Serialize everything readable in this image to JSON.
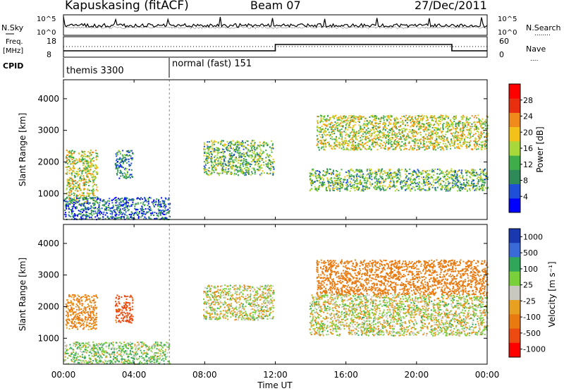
{
  "header": {
    "station": "Kapuskasing (fitACF)",
    "beam": "Beam 07",
    "date": "27/Dec/2011"
  },
  "noise_panel": {
    "left_label": "N.Sky",
    "right_label": "N.Search",
    "right_marker": "........",
    "left_ticks": [
      "10^5",
      "10^0"
    ],
    "right_ticks": [
      "10^5",
      "10^0"
    ]
  },
  "freq_panel": {
    "left_label_1": "Freq.",
    "left_label_2": "[MHz]",
    "right_label": "Nave",
    "right_marker": "....",
    "left_ticks": [
      "18",
      "8"
    ],
    "right_ticks": [
      "60",
      "0"
    ]
  },
  "cpid_panel": {
    "label": "CPID",
    "modes": [
      {
        "name": "themis 3300",
        "start_hour": 0
      },
      {
        "name": "normal (fast) 151",
        "start_hour": 6
      }
    ]
  },
  "time_axis": {
    "label": "Time UT",
    "tick_labels": [
      "00:00",
      "04:00",
      "08:00",
      "12:00",
      "16:00",
      "20:00",
      "00:00"
    ],
    "tick_hours": [
      0,
      4,
      8,
      12,
      16,
      20,
      24
    ]
  },
  "colors": {
    "power_scale": [
      "#0000ff",
      "#1f4fd8",
      "#2f8a5a",
      "#3fae4a",
      "#a8d83a",
      "#f2c21a",
      "#f08a1a",
      "#e83010",
      "#ff0000"
    ],
    "velocity_scale": [
      "#1a38b0",
      "#3a6ad8",
      "#2fa65a",
      "#7ad03a",
      "#c8c8c0",
      "#e8a020",
      "#e87a10",
      "#ec4a10",
      "#ff0000"
    ]
  },
  "chart_data": [
    {
      "type": "heatmap",
      "name": "power",
      "ylabel": "Slant Range [km]",
      "ylim": [
        180,
        4600
      ],
      "y_ticks": [
        1000,
        2000,
        3000,
        4000
      ],
      "xlim": [
        0,
        24
      ],
      "colorbar": {
        "label": "Power [dB]",
        "ticks": [
          "4",
          "8",
          "12",
          "16",
          "20",
          "24",
          "28"
        ],
        "range": [
          0,
          30
        ]
      },
      "regions": [
        {
          "t0": 0.1,
          "t1": 1.9,
          "r0": 700,
          "r1": 2400,
          "level": 16
        },
        {
          "t0": 2.9,
          "t1": 3.9,
          "r0": 1500,
          "r1": 2400,
          "level": 8
        },
        {
          "t0": 0.0,
          "t1": 6.0,
          "r0": 200,
          "r1": 900,
          "level": 6
        },
        {
          "t0": 7.9,
          "t1": 11.9,
          "r0": 1600,
          "r1": 2700,
          "level": 12
        },
        {
          "t0": 13.9,
          "t1": 24.0,
          "r0": 1100,
          "r1": 1800,
          "level": 12
        },
        {
          "t0": 14.3,
          "t1": 24.0,
          "r0": 2400,
          "r1": 3500,
          "level": 16
        }
      ]
    },
    {
      "type": "heatmap",
      "name": "velocity",
      "ylabel": "Slant Range [km]",
      "ylim": [
        180,
        4600
      ],
      "y_ticks": [
        1000,
        2000,
        3000,
        4000
      ],
      "xlim": [
        0,
        24
      ],
      "colorbar": {
        "label": "Velocity [m s⁻¹]",
        "ticks": [
          "1000",
          "500",
          "100",
          "25",
          "-25",
          "-100",
          "-500",
          "-1000"
        ],
        "range": [
          -1000,
          1000
        ]
      },
      "regions": [
        {
          "t0": 0.1,
          "t1": 1.9,
          "r0": 1300,
          "r1": 2400,
          "level": -150
        },
        {
          "t0": 2.9,
          "t1": 3.9,
          "r0": 1500,
          "r1": 2400,
          "level": -600
        },
        {
          "t0": 0.0,
          "t1": 6.0,
          "r0": 200,
          "r1": 900,
          "level": 60
        },
        {
          "t0": 7.9,
          "t1": 11.9,
          "r0": 1600,
          "r1": 2700,
          "level": 0
        },
        {
          "t0": 13.9,
          "t1": 24.0,
          "r0": 1100,
          "r1": 2400,
          "level": 0
        },
        {
          "t0": 14.3,
          "t1": 24.0,
          "r0": 2400,
          "r1": 3500,
          "level": -300
        }
      ]
    }
  ]
}
